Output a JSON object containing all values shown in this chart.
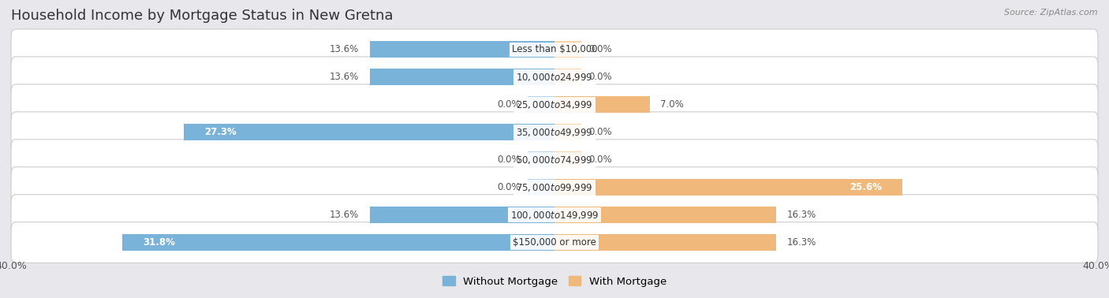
{
  "title": "Household Income by Mortgage Status in New Gretna",
  "source": "Source: ZipAtlas.com",
  "categories": [
    "Less than $10,000",
    "$10,000 to $24,999",
    "$25,000 to $34,999",
    "$35,000 to $49,999",
    "$50,000 to $74,999",
    "$75,000 to $99,999",
    "$100,000 to $149,999",
    "$150,000 or more"
  ],
  "without_mortgage": [
    13.6,
    13.6,
    0.0,
    27.3,
    0.0,
    0.0,
    13.6,
    31.8
  ],
  "with_mortgage": [
    0.0,
    0.0,
    7.0,
    0.0,
    0.0,
    25.6,
    16.3,
    16.3
  ],
  "color_without": "#7ab3d9",
  "color_with": "#f0b87a",
  "color_without_zero": "#b8d4ea",
  "color_with_zero": "#f5d4a8",
  "axis_max": 40.0,
  "bg_color": "#e8e8ec",
  "row_bg": "#ffffff",
  "legend_without": "Without Mortgage",
  "legend_with": "With Mortgage",
  "title_fontsize": 13,
  "label_fontsize": 8.5,
  "tick_fontsize": 9,
  "source_fontsize": 8
}
